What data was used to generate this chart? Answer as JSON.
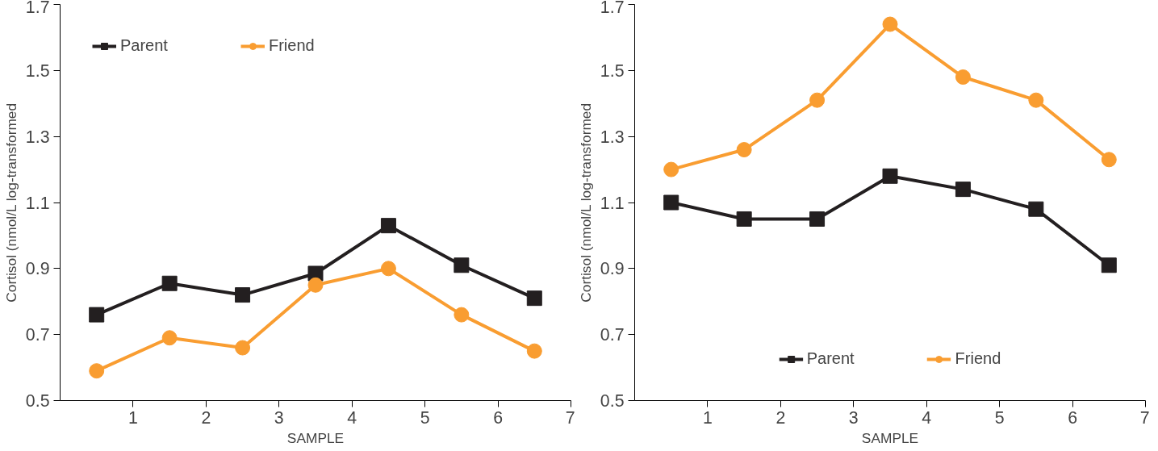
{
  "chart_data": [
    {
      "type": "line",
      "xlabel": "SAMPLE",
      "ylabel": "Cortisol (nmol/L log-transformed",
      "x": [
        0.5,
        1.5,
        2.5,
        3.5,
        4.5,
        5.5,
        6.5
      ],
      "xlim": [
        0,
        7
      ],
      "xticks": [
        1,
        2,
        3,
        4,
        5,
        6,
        7
      ],
      "ylim": [
        0.5,
        1.7
      ],
      "yticks": [
        0.5,
        0.7,
        0.9,
        1.1,
        1.3,
        1.5,
        1.7
      ],
      "grid": false,
      "legend": "top left",
      "series": [
        {
          "name": "Parent",
          "color": "#231f20",
          "marker": "square",
          "values": [
            0.76,
            0.855,
            0.82,
            0.885,
            1.03,
            0.91,
            0.81
          ]
        },
        {
          "name": "Friend",
          "color": "#f99d31",
          "marker": "circle",
          "values": [
            0.59,
            0.69,
            0.66,
            0.85,
            0.9,
            0.76,
            0.65
          ]
        }
      ]
    },
    {
      "type": "line",
      "xlabel": "SAMPLE",
      "ylabel": "Cortisol (nmol/L log-transformed",
      "x": [
        0.5,
        1.5,
        2.5,
        3.5,
        4.5,
        5.5,
        6.5
      ],
      "xlim": [
        0,
        7
      ],
      "xticks": [
        1,
        2,
        3,
        4,
        5,
        6,
        7
      ],
      "ylim": [
        0.5,
        1.7
      ],
      "yticks": [
        0.5,
        0.7,
        0.9,
        1.1,
        1.3,
        1.5,
        1.7
      ],
      "grid": false,
      "legend": "bottom",
      "series": [
        {
          "name": "Parent",
          "color": "#231f20",
          "marker": "square",
          "values": [
            1.1,
            1.05,
            1.05,
            1.18,
            1.14,
            1.08,
            0.91
          ]
        },
        {
          "name": "Friend",
          "color": "#f99d31",
          "marker": "circle",
          "values": [
            1.2,
            1.26,
            1.41,
            1.64,
            1.48,
            1.41,
            1.23
          ]
        }
      ]
    }
  ]
}
